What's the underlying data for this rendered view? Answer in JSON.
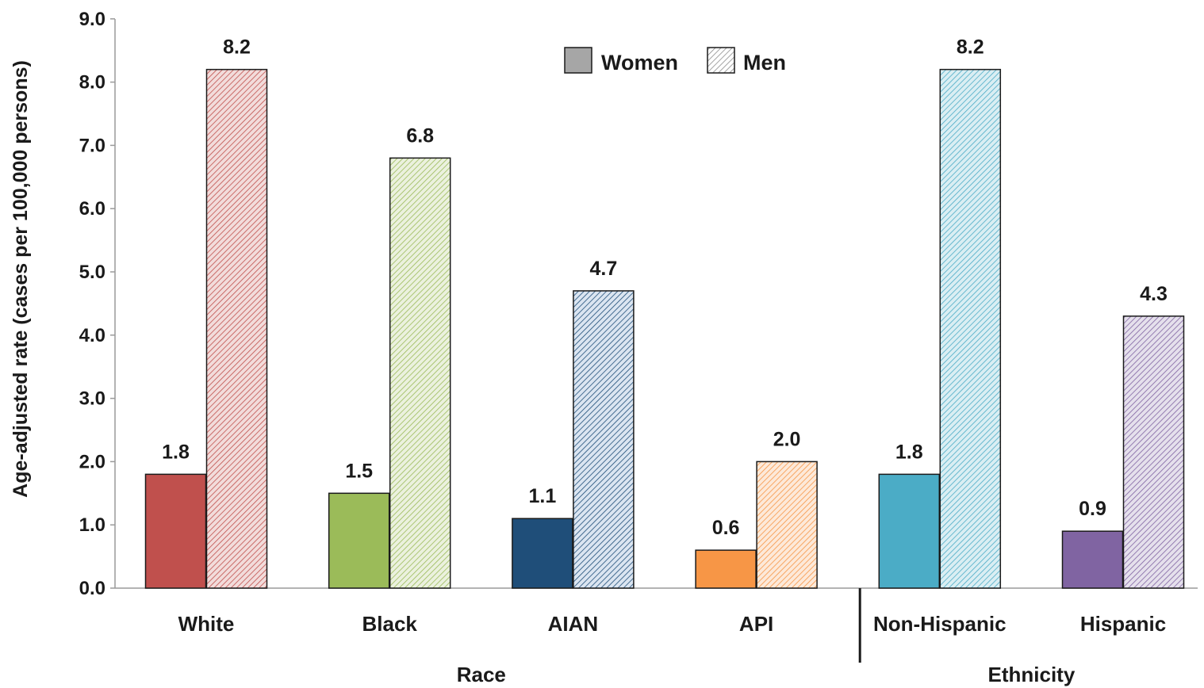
{
  "chart_data": {
    "type": "bar",
    "ylabel": "Age-adjusted rate (cases per 100,000 persons)",
    "ylim": [
      0,
      9
    ],
    "yticks": [
      "0.0",
      "1.0",
      "2.0",
      "3.0",
      "4.0",
      "5.0",
      "6.0",
      "7.0",
      "8.0",
      "9.0"
    ],
    "categories": [
      "White",
      "Black",
      "AIAN",
      "API",
      "Non-Hispanic",
      "Hispanic"
    ],
    "groups": [
      {
        "label": "Race",
        "categories": [
          "White",
          "Black",
          "AIAN",
          "API"
        ]
      },
      {
        "label": "Ethnicity",
        "categories": [
          "Non-Hispanic",
          "Hispanic"
        ]
      }
    ],
    "series": [
      {
        "name": "Women",
        "pattern": "solid",
        "values": [
          1.8,
          1.5,
          1.1,
          0.6,
          1.8,
          0.9
        ],
        "value_labels": [
          "1.8",
          "1.5",
          "1.1",
          "0.6",
          "1.8",
          "0.9"
        ]
      },
      {
        "name": "Men",
        "pattern": "hatched",
        "values": [
          8.2,
          6.8,
          4.7,
          2.0,
          8.2,
          4.3
        ],
        "value_labels": [
          "8.2",
          "6.8",
          "4.7",
          "2.0",
          "8.2",
          "4.3"
        ]
      }
    ],
    "colors": {
      "women": [
        "#c0504d",
        "#9bbb59",
        "#1f4e79",
        "#f79646",
        "#4bacc6",
        "#8064a2"
      ],
      "men_base": [
        "#f2dcdb",
        "#ebf1de",
        "#dbe5f1",
        "#fde9d9",
        "#daeef3",
        "#e5e0ec"
      ],
      "men_hatch": [
        "#c0504d",
        "#9bbb59",
        "#1f4e79",
        "#f79646",
        "#4bacc6",
        "#8064a2"
      ],
      "legend_women": "#a6a6a6",
      "legend_men_hatch": "#8c8c8c"
    },
    "legend": {
      "position": "top-center",
      "entries": [
        "Women",
        "Men"
      ]
    },
    "grid": false
  }
}
